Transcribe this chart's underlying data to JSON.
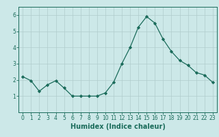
{
  "x": [
    0,
    1,
    2,
    3,
    4,
    5,
    6,
    7,
    8,
    9,
    10,
    11,
    12,
    13,
    14,
    15,
    16,
    17,
    18,
    19,
    20,
    21,
    22,
    23
  ],
  "y": [
    2.2,
    1.95,
    1.3,
    1.7,
    1.95,
    1.5,
    1.0,
    1.0,
    1.0,
    1.0,
    1.2,
    1.85,
    3.0,
    4.0,
    5.25,
    5.9,
    5.5,
    4.5,
    3.75,
    3.2,
    2.9,
    2.45,
    2.3,
    1.85
  ],
  "line_color": "#1a6b5a",
  "marker": "D",
  "markersize": 2.2,
  "linewidth": 0.9,
  "xlabel": "Humidex (Indice chaleur)",
  "xlabel_fontsize": 7,
  "xlim": [
    -0.5,
    23.5
  ],
  "ylim": [
    0.0,
    6.5
  ],
  "yticks": [
    1,
    2,
    3,
    4,
    5,
    6
  ],
  "xticks": [
    0,
    1,
    2,
    3,
    4,
    5,
    6,
    7,
    8,
    9,
    10,
    11,
    12,
    13,
    14,
    15,
    16,
    17,
    18,
    19,
    20,
    21,
    22,
    23
  ],
  "bg_color": "#cce8e8",
  "grid_color": "#b0cccc",
  "tick_fontsize": 5.5,
  "label_color": "#1a6b5a",
  "spine_color": "#1a6b5a"
}
